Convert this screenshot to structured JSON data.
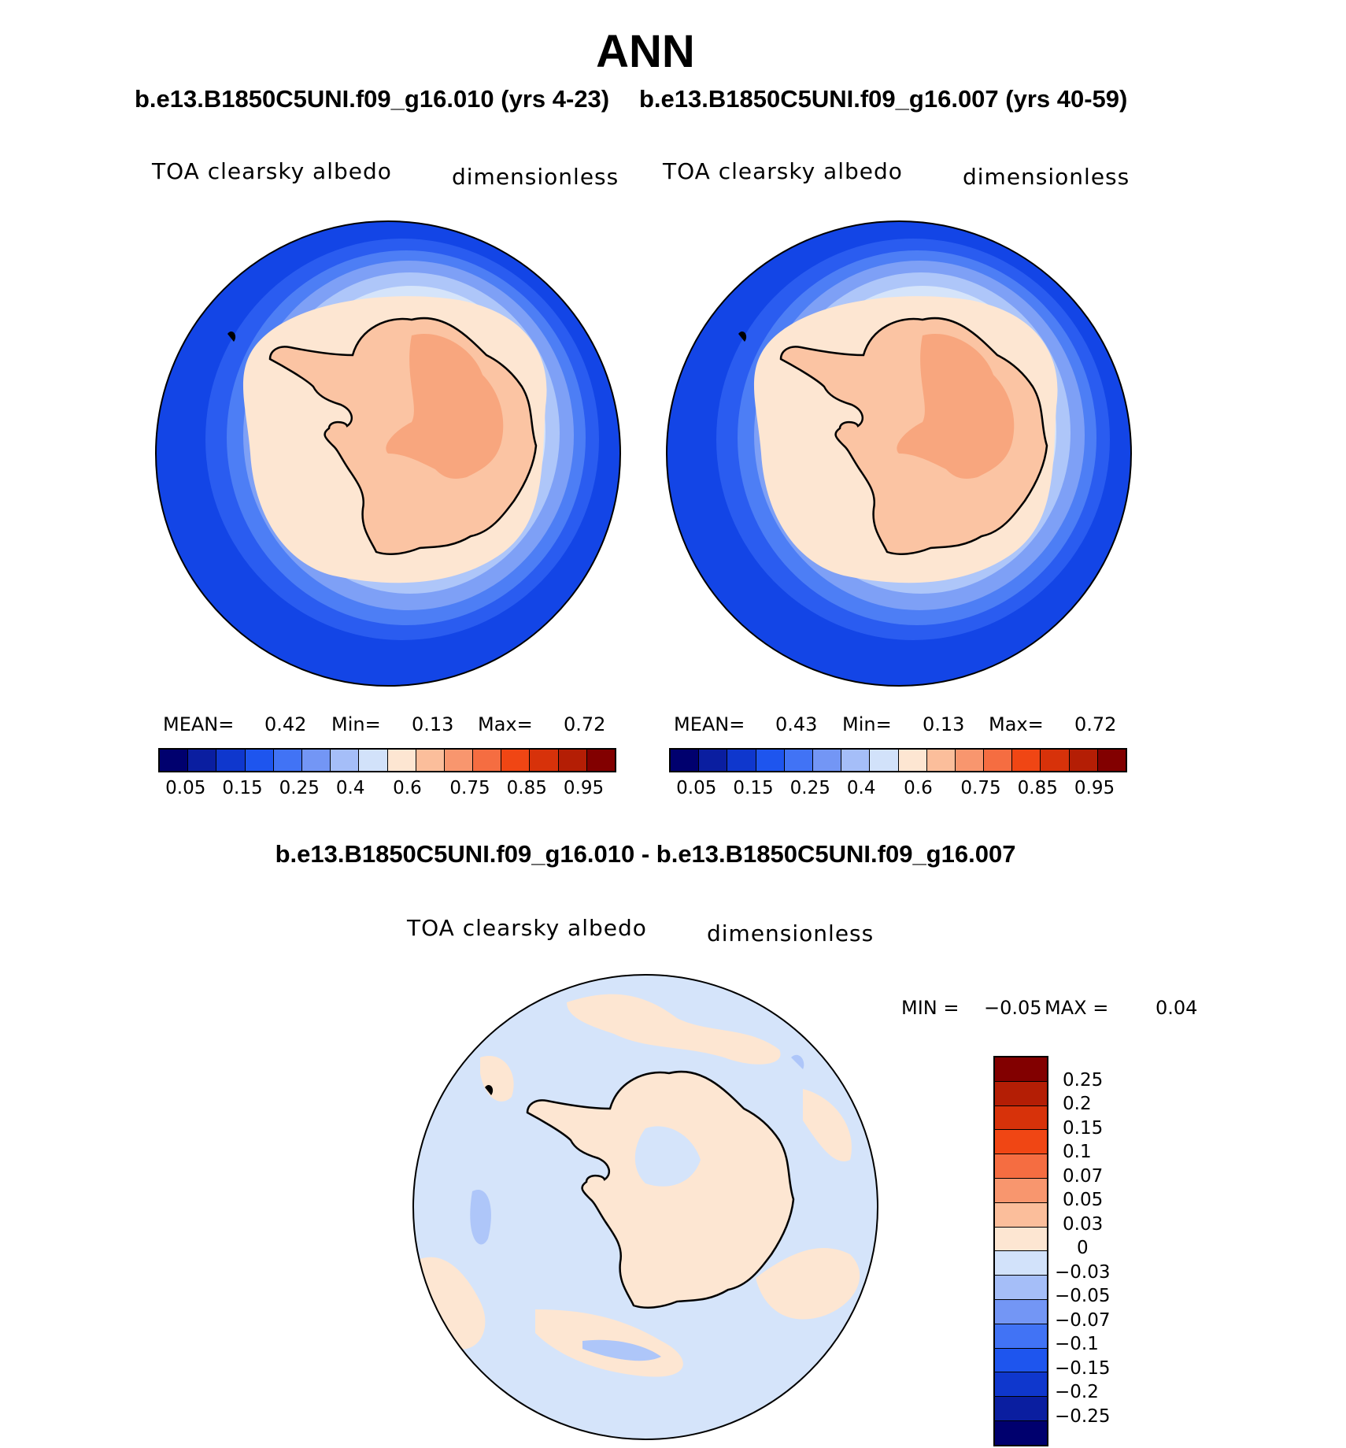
{
  "title": "ANN",
  "case1_title": "b.e13.B1850C5UNI.f09_g16.010 (yrs 4-23)",
  "case2_title": "b.e13.B1850C5UNI.f09_g16.007 (yrs 40-59)",
  "diff_title": "b.e13.B1850C5UNI.f09_g16.010 - b.e13.B1850C5UNI.f09_g16.007",
  "panels": [
    {
      "variable": "TOA clearsky albedo",
      "units": "dimensionless",
      "stats": {
        "mean_label": "MEAN=",
        "mean": "0.42",
        "min_label": "Min=",
        "min": "0.13",
        "max_label": "Max=",
        "max": "0.72"
      }
    },
    {
      "variable": "TOA clearsky albedo",
      "units": "dimensionless",
      "stats": {
        "mean_label": "MEAN=",
        "mean": "0.43",
        "min_label": "Min=",
        "min": "0.13",
        "max_label": "Max=",
        "max": "0.72"
      }
    },
    {
      "variable": "TOA clearsky albedo",
      "units": "dimensionless",
      "stats": {
        "min_label": "MIN =",
        "min": "−0.05",
        "max_label": "MAX =",
        "max": "0.04"
      }
    }
  ],
  "colorbar_main": {
    "tick_labels": [
      "0.05",
      "0.15",
      "0.25",
      "0.4",
      "0.6",
      "0.75",
      "0.85",
      "0.95"
    ],
    "colors": [
      "#00006e",
      "#0a1ea0",
      "#0f37cd",
      "#1e55ee",
      "#4173f5",
      "#7396f5",
      "#a5bef8",
      "#d2e2fa",
      "#fde6d2",
      "#fbbe9b",
      "#f8966e",
      "#f56d41",
      "#f04614",
      "#d7320a",
      "#b41e05",
      "#820000"
    ]
  },
  "colorbar_diff": {
    "tick_labels": [
      "0.25",
      "0.2",
      "0.15",
      "0.1",
      "0.07",
      "0.05",
      "0.03",
      "0",
      "−0.03",
      "−0.05",
      "−0.07",
      "−0.1",
      "−0.15",
      "−0.2",
      "−0.25"
    ],
    "colors": [
      "#820000",
      "#b41e05",
      "#d7320a",
      "#f04614",
      "#f56d41",
      "#f8966e",
      "#fbbe9b",
      "#fde6d2",
      "#d2e2fa",
      "#a5bef8",
      "#7396f5",
      "#4173f5",
      "#1e55ee",
      "#0f37cd",
      "#0a1ea0",
      "#00006e"
    ]
  },
  "map_colors": {
    "ring_outer": "#1345e6",
    "ring_2": "#2a5cf0",
    "ring_3": "#4d7ef5",
    "ring_4": "#7ea0f6",
    "ring_5": "#aec6f9",
    "ring_6": "#d5e4fa",
    "sea_ice": "#fde6d2",
    "continent": "#fbc4a3",
    "plateau": "#f8a67e",
    "diff_base": "#d5e4fa",
    "diff_pos": "#fde6d2",
    "diff_neg": "#aec6f9",
    "coast": "#000000"
  }
}
